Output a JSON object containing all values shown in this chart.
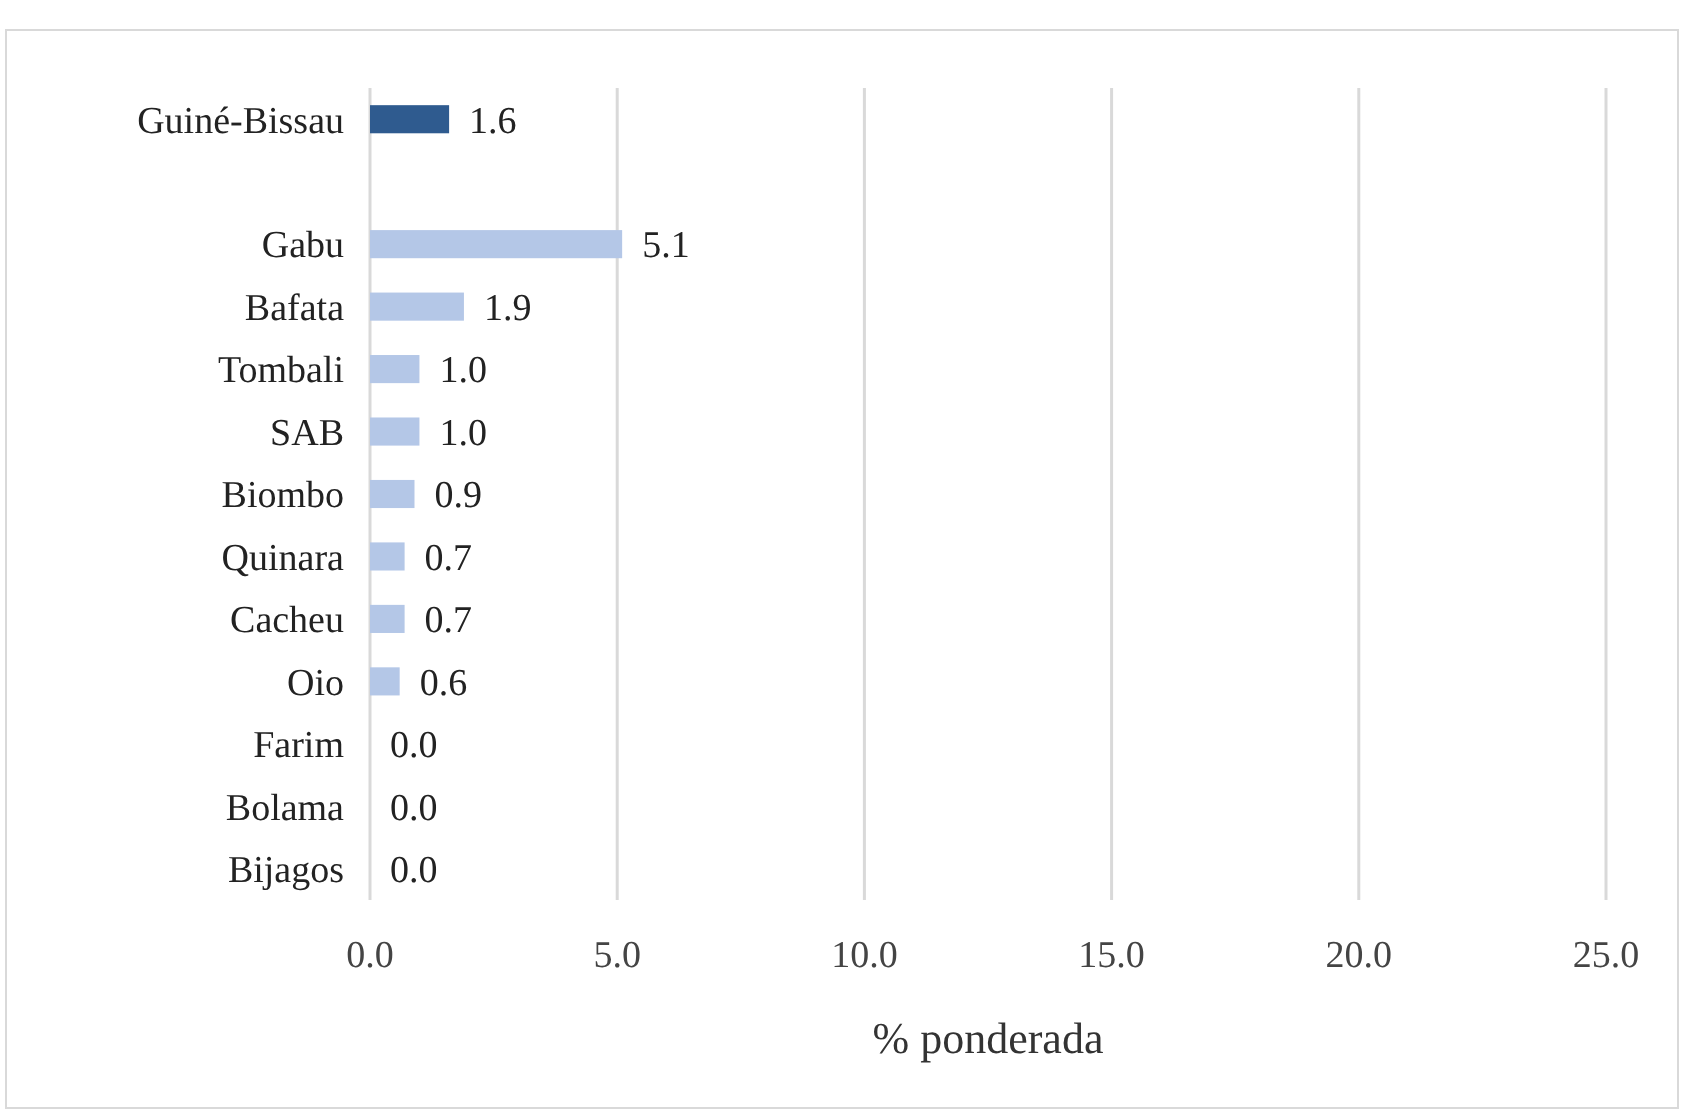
{
  "chart_data": {
    "type": "bar",
    "orientation": "horizontal",
    "xlabel": "% ponderada",
    "categories": [
      "Guiné-Bissau",
      null,
      "Gabu",
      "Bafata",
      "Tombali",
      "SAB",
      "Biombo",
      "Quinara",
      "Cacheu",
      "Oio",
      "Farim",
      "Bolama",
      "Bijagos"
    ],
    "values": [
      1.6,
      null,
      5.1,
      1.9,
      1.0,
      1.0,
      0.9,
      0.7,
      0.7,
      0.6,
      0.0,
      0.0,
      0.0
    ],
    "colors": [
      "#2f5b8f",
      null,
      "#b4c7e7",
      "#b4c7e7",
      "#b4c7e7",
      "#b4c7e7",
      "#b4c7e7",
      "#b4c7e7",
      "#b4c7e7",
      "#b4c7e7",
      "#b4c7e7",
      "#b4c7e7",
      "#b4c7e7"
    ],
    "value_labels": [
      "1.6",
      null,
      "5.1",
      "1.9",
      "1.0",
      "1.0",
      "0.9",
      "0.7",
      "0.7",
      "0.6",
      "0.0",
      "0.0",
      "0.0"
    ],
    "xlim": [
      0,
      25
    ],
    "xticks": [
      {
        "value": 0,
        "label": "0.0"
      },
      {
        "value": 5,
        "label": "5.0"
      },
      {
        "value": 10,
        "label": "10.0"
      },
      {
        "value": 15,
        "label": "15.0"
      },
      {
        "value": 20,
        "label": "20.0"
      },
      {
        "value": 25,
        "label": "25.0"
      }
    ],
    "grid": "x"
  }
}
